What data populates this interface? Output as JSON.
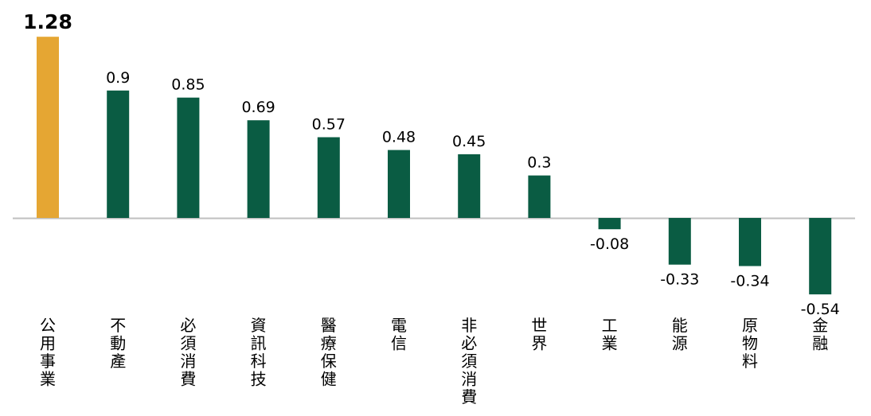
{
  "chart_data": {
    "type": "bar",
    "categories": [
      "公用事業",
      "不動產",
      "必須消費",
      "資訊科技",
      "醫療保健",
      "電信",
      "非必須消費",
      "世界",
      "工業",
      "能源",
      "原物料",
      "金融"
    ],
    "values": [
      1.28,
      0.9,
      0.85,
      0.69,
      0.57,
      0.48,
      0.45,
      0.3,
      -0.08,
      -0.33,
      -0.34,
      -0.54
    ],
    "value_labels": [
      "1.28",
      "0.9",
      "0.85",
      "0.69",
      "0.57",
      "0.48",
      "0.45",
      "0.3",
      "-0.08",
      "-0.33",
      "-0.34",
      "-0.54"
    ],
    "highlight_index": 0,
    "colors": {
      "bar": "#0a5c43",
      "highlight": "#e5a633",
      "axis": "#bfbfbf"
    },
    "grid": false,
    "legend": "none",
    "title": "",
    "xlabel": "",
    "ylabel": ""
  }
}
